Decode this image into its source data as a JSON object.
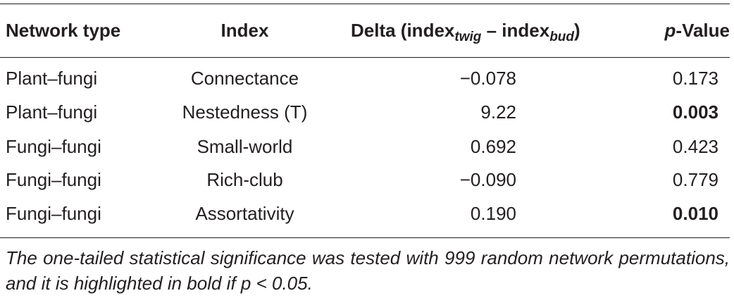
{
  "header": {
    "network_type": "Network type",
    "index": "Index",
    "delta_prefix": "Delta (index",
    "delta_sub1": "twig",
    "delta_mid": " – index",
    "delta_sub2": "bud",
    "delta_suffix": ")",
    "p_italic": "p",
    "p_suffix": "-Value"
  },
  "rows": [
    {
      "network_type": "Plant–fungi",
      "index": "Connectance",
      "delta": "−0.078",
      "p_value": "0.173",
      "significant": false
    },
    {
      "network_type": "Plant–fungi",
      "index": "Nestedness (T)",
      "delta": "9.22",
      "p_value": "0.003",
      "significant": true
    },
    {
      "network_type": "Fungi–fungi",
      "index": "Small-world",
      "delta": "0.692",
      "p_value": "0.423",
      "significant": false
    },
    {
      "network_type": "Fungi–fungi",
      "index": "Rich-club",
      "delta": "−0.090",
      "p_value": "0.779",
      "significant": false
    },
    {
      "network_type": "Fungi–fungi",
      "index": "Assortativity",
      "delta": "0.190",
      "p_value": "0.010",
      "significant": true
    }
  ],
  "footnote": "The one-tailed statistical significance was tested with 999 random network permutations, and it is highlighted in bold if p < 0.05."
}
